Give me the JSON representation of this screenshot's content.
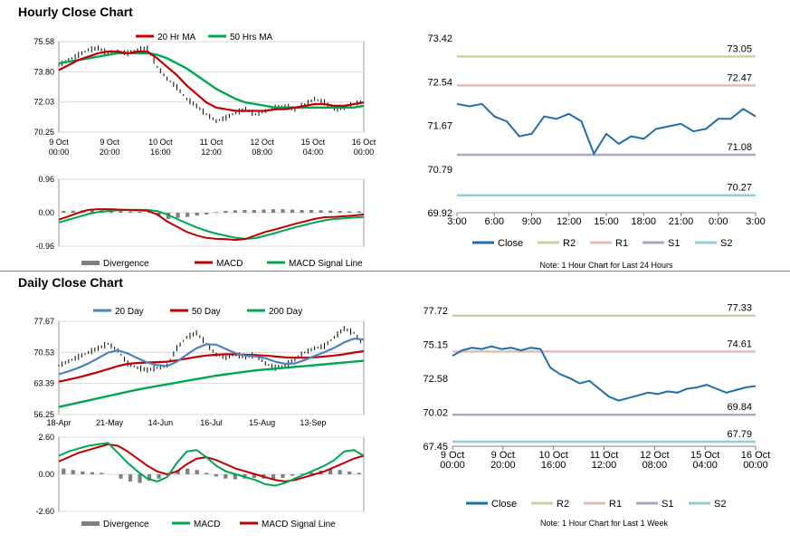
{
  "sections": {
    "hourly_title": "Hourly Close Chart",
    "daily_title": "Daily Close Chart"
  },
  "colors": {
    "red": "#c00000",
    "green": "#00a651",
    "blue": "#4f81bd",
    "close_blue": "#1f6fa8",
    "r2": "#c3d69b",
    "r1": "#e6b9b8",
    "s1": "#b3a2c7",
    "s2": "#92cddc",
    "divergence": "#808080"
  },
  "chart_data": [
    {
      "id": "hourly-price",
      "type": "line",
      "ylim": [
        70.25,
        75.58
      ],
      "yticks": [
        "75.58",
        "73.80",
        "72.03",
        "70.25"
      ],
      "xticks": [
        "9 Oct\n00:00",
        "9 Oct\n20:00",
        "10 Oct\n16:00",
        "11 Oct\n12:00",
        "12 Oct\n08:00",
        "15 Oct\n04:00",
        "16 Oct\n00:00"
      ],
      "legend": [
        "20 Hr MA",
        "50 Hrs MA"
      ],
      "series": [
        {
          "name": "Price",
          "values": [
            74.2,
            74.5,
            74.8,
            75.1,
            75.2,
            74.9,
            75.0,
            74.9,
            75.1,
            75.2,
            74.1,
            73.4,
            72.9,
            72.2,
            71.8,
            71.3,
            70.9,
            71.1,
            71.4,
            71.6,
            71.3,
            71.5,
            71.7,
            71.8,
            71.6,
            71.9,
            72.2,
            72.0,
            71.6,
            71.7,
            71.9,
            72.1
          ]
        },
        {
          "name": "20 Hr MA",
          "values": [
            73.9,
            74.2,
            74.5,
            74.7,
            74.9,
            75.0,
            75.0,
            74.9,
            75.0,
            75.0,
            74.6,
            74.1,
            73.6,
            73.0,
            72.5,
            72.0,
            71.7,
            71.6,
            71.5,
            71.5,
            71.5,
            71.5,
            71.6,
            71.6,
            71.7,
            71.8,
            71.9,
            71.9,
            71.8,
            71.8,
            71.9,
            72.0
          ]
        },
        {
          "name": "50 Hrs MA",
          "values": [
            74.3,
            74.4,
            74.5,
            74.6,
            74.7,
            74.8,
            74.9,
            74.9,
            74.9,
            74.9,
            74.8,
            74.6,
            74.3,
            74.0,
            73.6,
            73.2,
            72.8,
            72.5,
            72.2,
            72.0,
            71.9,
            71.8,
            71.7,
            71.7,
            71.7,
            71.7,
            71.7,
            71.7,
            71.7,
            71.7,
            71.7,
            71.8
          ]
        }
      ]
    },
    {
      "id": "hourly-macd",
      "type": "line",
      "ylim": [
        -0.96,
        0.96
      ],
      "yticks": [
        "0.96",
        "0.00",
        "-0.96"
      ],
      "legend": [
        "Divergence",
        "MACD",
        "MACD Signal Line"
      ],
      "series": [
        {
          "name": "Divergence",
          "values": [
            0.05,
            0.06,
            0.07,
            0.08,
            0.07,
            0.06,
            0.05,
            0.04,
            0.03,
            0.03,
            -0.1,
            -0.18,
            -0.15,
            -0.12,
            -0.08,
            -0.05,
            0.02,
            0.05,
            0.07,
            0.08,
            0.08,
            0.09,
            0.1,
            0.1,
            0.09,
            0.08,
            0.08,
            0.07,
            0.06,
            0.05,
            0.04,
            0.04
          ]
        },
        {
          "name": "MACD",
          "values": [
            -0.2,
            -0.1,
            0.0,
            0.08,
            0.1,
            0.1,
            0.09,
            0.08,
            0.07,
            0.06,
            -0.05,
            -0.25,
            -0.4,
            -0.55,
            -0.65,
            -0.72,
            -0.75,
            -0.76,
            -0.78,
            -0.75,
            -0.65,
            -0.55,
            -0.48,
            -0.4,
            -0.32,
            -0.25,
            -0.18,
            -0.13,
            -0.12,
            -0.1,
            -0.08,
            -0.05
          ]
        },
        {
          "name": "MACD Signal Line",
          "values": [
            -0.28,
            -0.2,
            -0.12,
            -0.04,
            0.02,
            0.05,
            0.07,
            0.08,
            0.08,
            0.08,
            0.05,
            -0.05,
            -0.18,
            -0.3,
            -0.42,
            -0.52,
            -0.6,
            -0.66,
            -0.72,
            -0.75,
            -0.73,
            -0.66,
            -0.58,
            -0.5,
            -0.42,
            -0.35,
            -0.28,
            -0.22,
            -0.18,
            -0.16,
            -0.14,
            -0.12
          ]
        }
      ]
    },
    {
      "id": "hourly-levels",
      "type": "line",
      "ylim": [
        69.92,
        73.42
      ],
      "yticks": [
        "73.42",
        "72.54",
        "71.67",
        "70.79",
        "69.92"
      ],
      "xticks": [
        "3:00",
        "6:00",
        "9:00",
        "12:00",
        "15:00",
        "18:00",
        "21:00",
        "0:00",
        "3:00"
      ],
      "legend": [
        "Close",
        "R2",
        "R1",
        "S1",
        "S2"
      ],
      "levels": [
        {
          "name": "R2",
          "value": 73.05,
          "label": "73.05"
        },
        {
          "name": "R1",
          "value": 72.47,
          "label": "72.47"
        },
        {
          "name": "S1",
          "value": 71.08,
          "label": "71.08"
        },
        {
          "name": "S2",
          "value": 70.27,
          "label": "70.27"
        }
      ],
      "series": [
        {
          "name": "Close",
          "values": [
            72.1,
            72.05,
            72.1,
            71.85,
            71.75,
            71.45,
            71.5,
            71.85,
            71.8,
            71.9,
            71.75,
            71.1,
            71.5,
            71.3,
            71.45,
            71.4,
            71.6,
            71.65,
            71.7,
            71.55,
            71.6,
            71.8,
            71.8,
            72.0,
            71.85
          ]
        }
      ],
      "note": "Note: 1 Hour Chart for Last 24 Hours"
    },
    {
      "id": "daily-price",
      "type": "line",
      "ylim": [
        56.25,
        77.67
      ],
      "yticks": [
        "77.67",
        "70.53",
        "63.39",
        "56.25"
      ],
      "xticks": [
        "18-Apr",
        "21-May",
        "14-Jun",
        "16-Jul",
        "15-Aug",
        "13-Sep"
      ],
      "legend": [
        "20 Day",
        "50 Day",
        "200 Day"
      ],
      "series": [
        {
          "name": "Price",
          "values": [
            67.5,
            68.5,
            69.5,
            70.5,
            71.5,
            72.5,
            71.0,
            68.0,
            67.0,
            66.5,
            67.0,
            67.5,
            71.5,
            74.0,
            75.0,
            72.5,
            70.0,
            69.5,
            70.0,
            69.5,
            70.0,
            68.0,
            67.0,
            67.5,
            69.0,
            70.5,
            71.5,
            72.0,
            74.0,
            76.0,
            75.0,
            72.0
          ]
        },
        {
          "name": "20 Day",
          "values": [
            65.5,
            66.2,
            67.0,
            68.0,
            69.2,
            70.5,
            71.0,
            70.3,
            69.2,
            68.2,
            67.6,
            67.4,
            68.4,
            70.0,
            71.5,
            72.4,
            72.3,
            71.3,
            70.3,
            69.8,
            69.6,
            69.2,
            68.4,
            67.9,
            68.0,
            68.8,
            69.7,
            70.6,
            71.6,
            72.8,
            73.7,
            73.5
          ]
        },
        {
          "name": "50 Day",
          "values": [
            63.8,
            64.3,
            64.8,
            65.4,
            66.0,
            66.7,
            67.4,
            67.9,
            68.1,
            68.2,
            68.3,
            68.4,
            68.7,
            69.1,
            69.5,
            69.8,
            70.0,
            70.1,
            70.1,
            70.0,
            69.9,
            69.8,
            69.6,
            69.4,
            69.3,
            69.3,
            69.4,
            69.6,
            69.8,
            70.1,
            70.5,
            70.8
          ]
        },
        {
          "name": "200 Day",
          "values": [
            58.0,
            58.5,
            59.0,
            59.5,
            60.0,
            60.5,
            61.0,
            61.5,
            62.0,
            62.4,
            62.8,
            63.2,
            63.6,
            64.0,
            64.4,
            64.8,
            65.2,
            65.5,
            65.8,
            66.1,
            66.4,
            66.6,
            66.8,
            67.0,
            67.2,
            67.4,
            67.6,
            67.8,
            68.0,
            68.2,
            68.4,
            68.6
          ]
        }
      ]
    },
    {
      "id": "daily-macd",
      "type": "line",
      "ylim": [
        -2.6,
        2.6
      ],
      "yticks": [
        "2.60",
        "0.00",
        "-2.60"
      ],
      "legend": [
        "Divergence",
        "MACD",
        "MACD Signal Line"
      ],
      "series": [
        {
          "name": "Divergence",
          "values": [
            0.4,
            0.3,
            0.2,
            0.15,
            0.1,
            0.0,
            -0.3,
            -0.5,
            -0.6,
            -0.45,
            -0.3,
            -0.1,
            0.3,
            0.4,
            0.3,
            0.1,
            -0.15,
            -0.3,
            -0.35,
            -0.3,
            -0.25,
            -0.3,
            -0.35,
            -0.25,
            -0.1,
            0.05,
            0.15,
            0.25,
            0.35,
            0.3,
            0.2,
            0.1
          ]
        },
        {
          "name": "MACD",
          "values": [
            1.3,
            1.6,
            1.8,
            2.0,
            2.1,
            2.2,
            1.5,
            0.8,
            0.2,
            -0.3,
            -0.5,
            -0.2,
            0.8,
            1.6,
            1.7,
            1.2,
            0.6,
            0.2,
            0.0,
            -0.2,
            -0.4,
            -0.7,
            -0.8,
            -0.6,
            -0.3,
            0.0,
            0.3,
            0.6,
            1.0,
            1.6,
            1.7,
            1.3
          ]
        },
        {
          "name": "MACD Signal Line",
          "values": [
            0.9,
            1.2,
            1.5,
            1.7,
            1.9,
            2.1,
            2.0,
            1.6,
            1.1,
            0.6,
            0.2,
            0.0,
            0.2,
            0.7,
            1.1,
            1.2,
            1.0,
            0.7,
            0.4,
            0.2,
            0.0,
            -0.2,
            -0.4,
            -0.5,
            -0.4,
            -0.2,
            0.0,
            0.2,
            0.5,
            0.8,
            1.1,
            1.3
          ]
        }
      ]
    },
    {
      "id": "weekly-levels",
      "type": "line",
      "ylim": [
        67.45,
        77.72
      ],
      "yticks": [
        "77.72",
        "75.15",
        "72.58",
        "70.02",
        "67.45"
      ],
      "xticks": [
        "9 Oct\n00:00",
        "9 Oct\n20:00",
        "10 Oct\n16:00",
        "11 Oct\n12:00",
        "12 Oct\n08:00",
        "15 Oct\n04:00",
        "16 Oct\n00:00"
      ],
      "legend": [
        "Close",
        "R2",
        "R1",
        "S1",
        "S2"
      ],
      "levels": [
        {
          "name": "R2",
          "value": 77.33,
          "label": "77.33"
        },
        {
          "name": "R1",
          "value": 74.61,
          "label": "74.61"
        },
        {
          "name": "S1",
          "value": 69.84,
          "label": "69.84"
        },
        {
          "name": "S2",
          "value": 67.79,
          "label": "67.79"
        }
      ],
      "series": [
        {
          "name": "Close",
          "values": [
            74.3,
            74.7,
            74.9,
            74.8,
            75.0,
            74.8,
            74.9,
            74.7,
            74.9,
            74.8,
            73.4,
            72.9,
            72.6,
            72.2,
            72.4,
            71.8,
            71.2,
            70.9,
            71.1,
            71.3,
            71.5,
            71.4,
            71.6,
            71.5,
            71.8,
            71.9,
            72.1,
            71.8,
            71.5,
            71.7,
            71.9,
            72.0
          ]
        }
      ],
      "note": "Note: 1 Hour Chart for Last 1 Week"
    }
  ]
}
